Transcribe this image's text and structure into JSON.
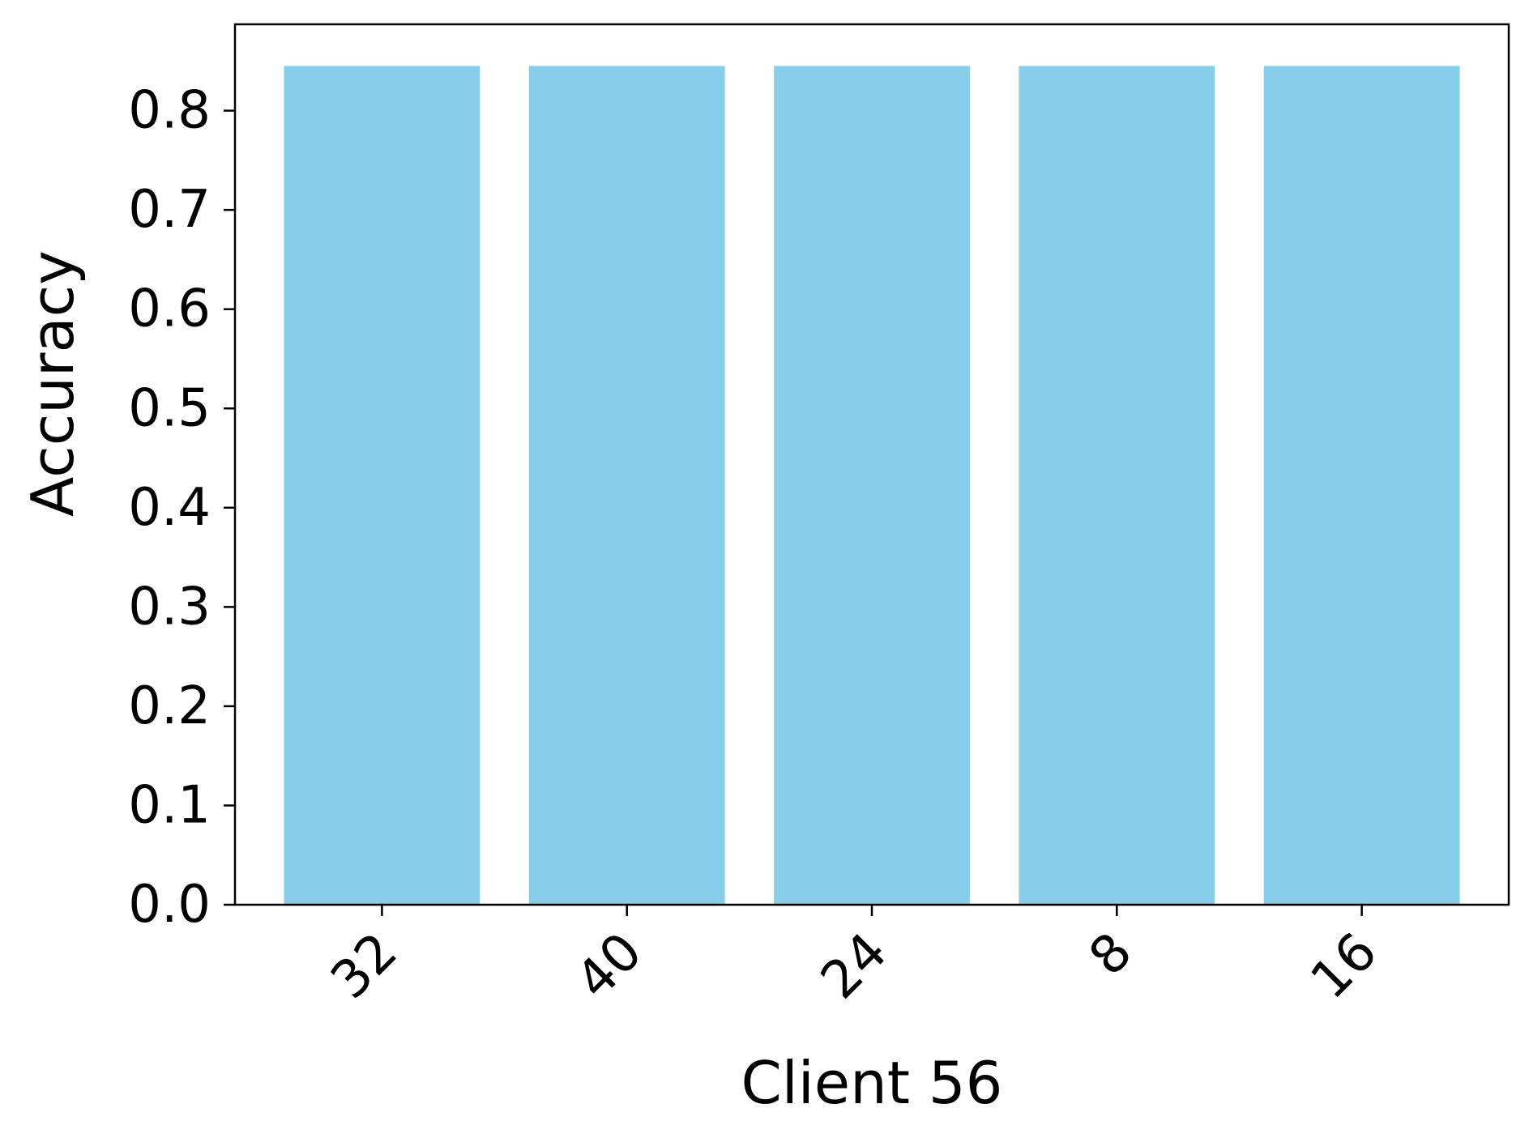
{
  "chart_data": {
    "type": "bar",
    "categories": [
      "32",
      "40",
      "24",
      "8",
      "16"
    ],
    "values": [
      0.845,
      0.845,
      0.845,
      0.845,
      0.845
    ],
    "title": "",
    "xlabel": "Client 56",
    "ylabel": "Accuracy",
    "ylim": [
      0,
      0.887
    ],
    "yticks": [
      "0.0",
      "0.1",
      "0.2",
      "0.3",
      "0.4",
      "0.5",
      "0.6",
      "0.7",
      "0.8"
    ],
    "bar_color": "#87ceeb",
    "grid": false,
    "xtick_rotation_deg": 45
  }
}
